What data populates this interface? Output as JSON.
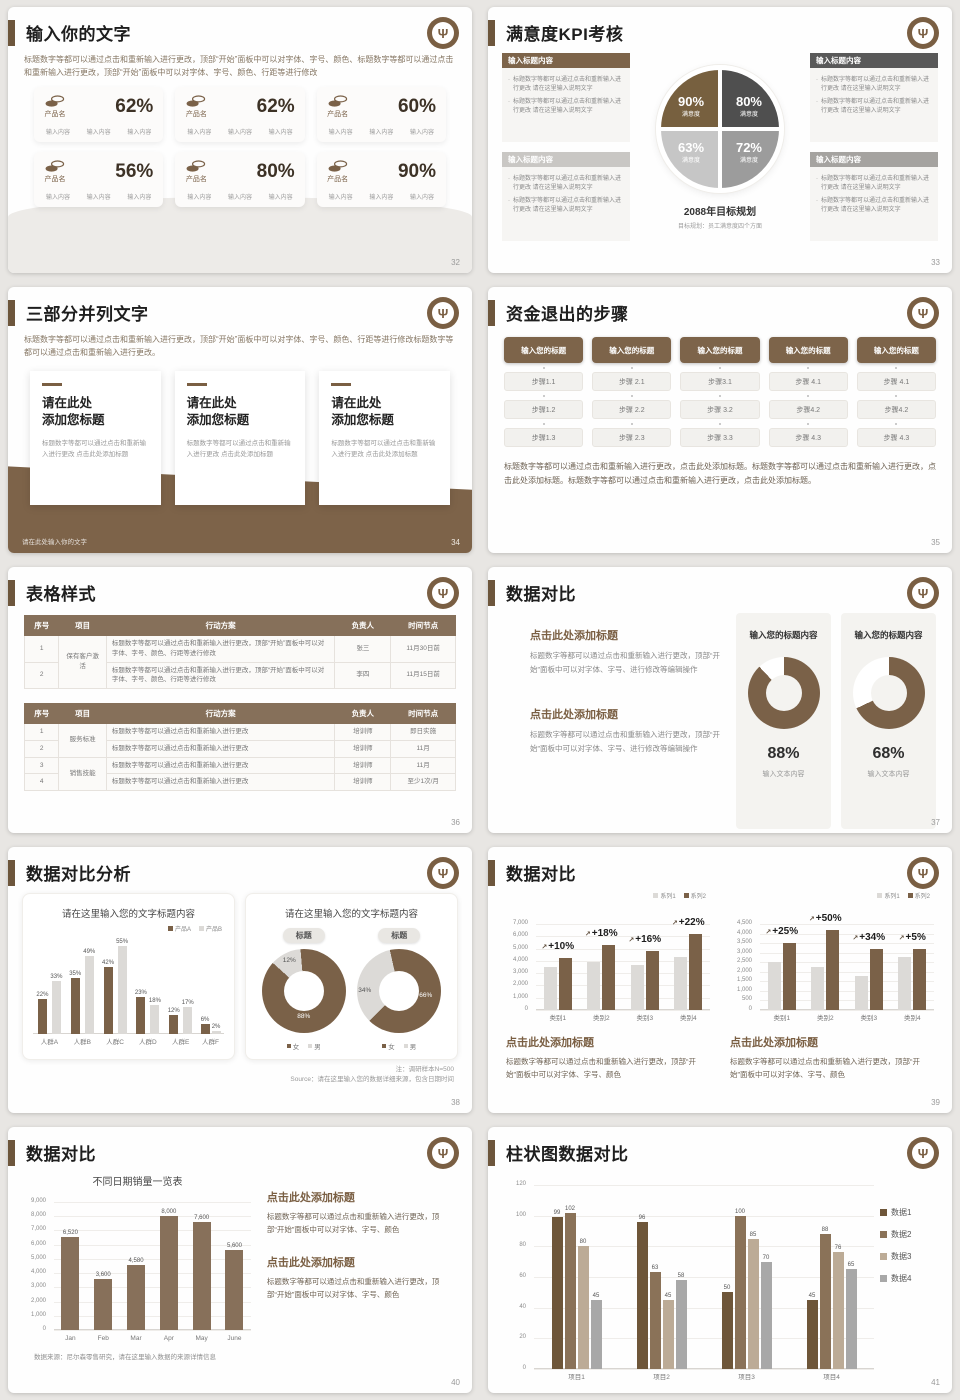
{
  "logo_glyph": "Ψ",
  "slides": {
    "s32": {
      "title": "输入你的文字",
      "page": "32",
      "body": "标题数字等都可以通过点击和重新输入进行更改，顶部“开始”面板中可以对字体、字号、颜色、标题数字等都可以通过点击和重新输入进行更改，顶部“开始”面板中可以对字体、字号、颜色、行距等进行修改",
      "cards": [
        {
          "name": "产品名",
          "value": "62%",
          "items": [
            "输入内容",
            "输入内容",
            "输入内容"
          ]
        },
        {
          "name": "产品名",
          "value": "62%",
          "items": [
            "输入内容",
            "输入内容",
            "输入内容"
          ]
        },
        {
          "name": "产品名",
          "value": "60%",
          "items": [
            "输入内容",
            "输入内容",
            "输入内容"
          ]
        },
        {
          "name": "产品名",
          "value": "56%",
          "items": [
            "输入内容",
            "输入内容",
            "输入内容"
          ]
        },
        {
          "name": "产品名",
          "value": "80%",
          "items": [
            "输入内容",
            "输入内容",
            "输入内容"
          ]
        },
        {
          "name": "产品名",
          "value": "90%",
          "items": [
            "输入内容",
            "输入内容",
            "输入内容"
          ]
        }
      ]
    },
    "s33": {
      "title": "满意度KPI考核",
      "page": "33",
      "boxes": [
        {
          "header": "输入标题内容",
          "hcolor": "#7d644a",
          "bullets": [
            "标题数字等都可以通过点击和重新输入进行更改 请在这里输入说明文字",
            "标题数字等都可以通过点击和重新输入进行更改 请在这里输入说明文字"
          ]
        },
        {
          "header": "输入标题内容",
          "hcolor": "#595959",
          "bullets": [
            "标题数字等都可以通过点击和重新输入进行更改 请在这里输入说明文字",
            "标题数字等都可以通过点击和重新输入进行更改 请在这里输入说明文字"
          ]
        },
        {
          "header": "输入标题内容",
          "hcolor": "#c9c7c4",
          "bullets": [
            "标题数字等都可以通过点击和重新输入进行更改 请在这里输入说明文字",
            "标题数字等都可以通过点击和重新输入进行更改 请在这里输入说明文字"
          ]
        },
        {
          "header": "输入标题内容",
          "hcolor": "#a5a3a0",
          "bullets": [
            "标题数字等都可以通过点击和重新输入进行更改 请在这里输入说明文字",
            "标题数字等都可以通过点击和重新输入进行更改 请在这里输入说明文字"
          ]
        }
      ],
      "caption_title": "2088年目标规划",
      "caption_sub": "目标规划：员工满意度四个方面"
    },
    "s34": {
      "title": "三部分并列文字",
      "page": "34",
      "body": "标题数字等都可以通过点击和重新输入进行更改，顶部“开始”面板中可以对字体、字号、颜色、行距等进行修改标题数字等都可以通过点击和重新输入进行更改。",
      "cards": [
        {
          "heading": "请在此处\n添加您标题",
          "body": "标题数字等都可以通过点击和重新输入进行更改 点击此处添加标题"
        },
        {
          "heading": "请在此处\n添加您标题",
          "body": "标题数字等都可以通过点击和重新输入进行更改 点击此处添加标题"
        },
        {
          "heading": "请在此处\n添加您标题",
          "body": "标题数字等都可以通过点击和重新输入进行更改 点击此处添加标题"
        }
      ],
      "footer": "请在此处输入你的文字"
    },
    "s35": {
      "title": "资金退出的步骤",
      "page": "35",
      "columns": [
        {
          "header": "输入您的标题",
          "steps": [
            "步骤1.1",
            "步骤1.2",
            "步骤1.3"
          ]
        },
        {
          "header": "输入您的标题",
          "steps": [
            "步骤 2.1",
            "步骤 2.2",
            "步骤 2.3"
          ]
        },
        {
          "header": "输入您的标题",
          "steps": [
            "步骤3.1",
            "步骤 3.2",
            "步骤 3.3"
          ]
        },
        {
          "header": "输入您的标题",
          "steps": [
            "步骤 4.1",
            "步骤4.2",
            "步骤 4.3"
          ]
        },
        {
          "header": "输入您的标题",
          "steps": [
            "步骤 4.1",
            "步骤4.2",
            "步骤 4.3"
          ]
        }
      ],
      "body": "标题数字等都可以通过点击和重新输入进行更改，点击此处添加标题。标题数字等都可以通过点击和重新输入进行更改，点击此处添加标题。标题数字等都可以通过点击和重新输入进行更改，点击此处添加标题。"
    },
    "s36": {
      "title": "表格样式",
      "page": "36",
      "headers": [
        "序号",
        "项目",
        "行动方案",
        "负责人",
        "时间节点"
      ],
      "table1_rows": [
        {
          "no": "1",
          "item": "保有客户激活",
          "plan": "标题数字等都可以通过点击和重新输入进行更改，顶部“开始”面板中可以对字体、字号、颜色、行距等进行修改",
          "owner": "张三",
          "time": "11月30日前"
        },
        {
          "no": "2",
          "plan": "标题数字等都可以通过点击和重新输入进行更改，顶部“开始”面板中可以对字体、字号、颜色、行距等进行修改",
          "owner": "李四",
          "time": "11月15日前"
        }
      ],
      "table2_rows": [
        {
          "no": "1",
          "item": "服务标准",
          "plan": "标题数字等都可以通过点击和重新输入进行更改",
          "owner": "培训师",
          "time": "即日实施"
        },
        {
          "no": "2",
          "plan": "标题数字等都可以通过点击和重新输入进行更改",
          "owner": "培训师",
          "time": "11月"
        },
        {
          "no": "3",
          "item": "销售技能",
          "plan": "标题数字等都可以通过点击和重新输入进行更改",
          "owner": "培训师",
          "time": "11月"
        },
        {
          "no": "4",
          "plan": "标题数字等都可以通过点击和重新输入进行更改",
          "owner": "培训师",
          "time": "至少1次/月"
        }
      ]
    },
    "s37": {
      "title": "数据对比",
      "page": "37",
      "sections": [
        {
          "heading": "点击此处添加标题",
          "body": "标题数字等都可以通过点击和重新输入进行更改，顶部“开始”面板中可以对字体、字号、进行修改等编辑操作"
        },
        {
          "heading": "点击此处添加标题",
          "body": "标题数字等都可以通过点击和重新输入进行更改，顶部“开始”面板中可以对字体、字号、进行修改等编辑操作"
        }
      ],
      "cards": [
        {
          "header": "输入您的标题内容",
          "pct_label": "88%",
          "caption": "输入文本内容"
        },
        {
          "header": "输入您的标题内容",
          "pct_label": "68%",
          "caption": "输入文本内容"
        }
      ]
    },
    "s38": {
      "title": "数据对比分析",
      "page": "38",
      "left_title": "请在这里输入您的文字标题内容",
      "right_title": "请在这里输入您的文字标题内容",
      "pill": "标题",
      "donut_legend": [
        {
          "label": "女",
          "color": "#7a6148"
        },
        {
          "label": "男",
          "color": "#dcdad7"
        }
      ],
      "note1": "注：调研样本N=500",
      "note2": "Source：请在这里输入您的数据详细来源，包含日期时间"
    },
    "s39": {
      "title": "数据对比",
      "page": "39",
      "blocks": [
        {
          "heading": "点击此处添加标题",
          "body": "标题数字等都可以通过点击和重新输入进行更改，顶部“开始”面板中可以对字体、字号、颜色"
        },
        {
          "heading": "点击此处添加标题",
          "body": "标题数字等都可以通过点击和重新输入进行更改，顶部“开始”面板中可以对字体、字号、颜色"
        }
      ]
    },
    "s40": {
      "title": "数据对比",
      "page": "40",
      "chart_title": "不同日期销量一览表",
      "source": "数据来源：尼尔森零售研究，请在这里输入数据的来源详情信息",
      "blocks": [
        {
          "heading": "点击此处添加标题",
          "body": "标题数字等都可以通过点击和重新输入进行更改，顶部“开始”面板中可以对字体、字号、颜色"
        },
        {
          "heading": "点击此处添加标题",
          "body": "标题数字等都可以通过点击和重新输入进行更改，顶部“开始”面板中可以对字体、字号、颜色"
        }
      ]
    },
    "s41": {
      "title": "柱状图数据对比",
      "page": "41"
    }
  },
  "chart_data": [
    {
      "id": "kpi-satisfaction-pie",
      "type": "quadrant-pie",
      "title": "2088年目标规划",
      "values": [
        {
          "pos": "tl",
          "pct_label": "90%",
          "pct": 90,
          "label": "满意度",
          "color": "#77603f"
        },
        {
          "pos": "tr",
          "pct_label": "80%",
          "pct": 80,
          "label": "满意度",
          "color": "#4f4f4f"
        },
        {
          "pos": "br",
          "pct_label": "72%",
          "pct": 72,
          "label": "满意度",
          "color": "#9c9c9c"
        },
        {
          "pos": "bl",
          "pct_label": "63%",
          "pct": 63,
          "label": "满意度",
          "color": "#c6c6c6"
        }
      ]
    },
    {
      "id": "donut-88",
      "type": "donut",
      "value": 88,
      "pct_label": "88%",
      "color": "#7a6148",
      "track": "#ffffff",
      "from": 0
    },
    {
      "id": "donut-68",
      "type": "donut",
      "value": 68,
      "pct_label": "68%",
      "color": "#7a6148",
      "track": "#ffffff",
      "from": 0
    },
    {
      "id": "crowd-product-compare",
      "type": "bar",
      "bar_labels": true,
      "label_suffix": "%",
      "bw": 9,
      "ymax": 60,
      "categories": [
        "人群A",
        "人群B",
        "人群C",
        "人群D",
        "人群E",
        "人群F"
      ],
      "series": [
        {
          "name": "产品A",
          "color": "#7a6148",
          "values": [
            22,
            35,
            42,
            23,
            12,
            6
          ]
        },
        {
          "name": "产品B",
          "color": "#dcdad7",
          "values": [
            33,
            49,
            55,
            18,
            17,
            2
          ]
        }
      ]
    },
    {
      "id": "gender-donut-left",
      "type": "donut",
      "value": 12,
      "color": "#dcdad7",
      "track": "#7a6148",
      "from": 312,
      "labels": [
        "12%",
        "88%"
      ]
    },
    {
      "id": "gender-donut-right",
      "type": "donut",
      "value": 34,
      "color": "#dcdad7",
      "track": "#7a6148",
      "from": 225,
      "labels": [
        "34%",
        "66%"
      ]
    },
    {
      "id": "category-compare-left",
      "type": "bar",
      "bw": 13,
      "ymax": 7000,
      "ystep": 1000,
      "categories": [
        "类别1",
        "类别2",
        "类别3",
        "类别4"
      ],
      "annotations": [
        "+10%",
        "+18%",
        "+16%",
        "+22%"
      ],
      "series": [
        {
          "name": "系列1",
          "color": "#dcdad7",
          "values": [
            3500,
            3900,
            3700,
            4300
          ]
        },
        {
          "name": "系列2",
          "color": "#7a6148",
          "values": [
            4200,
            5300,
            4800,
            6200
          ]
        }
      ]
    },
    {
      "id": "category-compare-right",
      "type": "bar",
      "bw": 13,
      "ymax": 4500,
      "ystep": 500,
      "categories": [
        "类别1",
        "类别2",
        "类别3",
        "类别4"
      ],
      "annotations": [
        "+25%",
        "+50%",
        "+34%",
        "+5%"
      ],
      "series": [
        {
          "name": "系列1",
          "color": "#dcdad7",
          "values": [
            2500,
            2250,
            1800,
            2800
          ]
        },
        {
          "name": "系列2",
          "color": "#7a6148",
          "values": [
            3500,
            4200,
            3200,
            3200
          ]
        }
      ]
    },
    {
      "id": "monthly-sales",
      "type": "bar",
      "bw": 18,
      "ymax": 9000,
      "ystep": 1000,
      "title": "不同日期销量一览表",
      "categories": [
        "Jan",
        "Feb",
        "Mar",
        "Apr",
        "May",
        "June"
      ],
      "series": [
        {
          "name": "销量",
          "color": "#87705a",
          "values": [
            6520,
            3600,
            4580,
            8000,
            7600,
            5600
          ],
          "labels": [
            "6,520",
            "3,600",
            "4,580",
            "8,000",
            "7,600",
            "5,600"
          ]
        }
      ]
    },
    {
      "id": "project-data-compare",
      "type": "bar",
      "bw": 11,
      "ymax": 120,
      "ystep": 20,
      "bar_labels": true,
      "categories": [
        "项目1",
        "项目2",
        "项目3",
        "项目4"
      ],
      "series": [
        {
          "name": "数据1",
          "color": "#6e5639",
          "values": [
            99,
            96,
            50,
            45
          ]
        },
        {
          "name": "数据2",
          "color": "#8a7258",
          "values": [
            102,
            63,
            100,
            88
          ]
        },
        {
          "name": "数据3",
          "color": "#bcab96",
          "values": [
            80,
            45,
            85,
            76
          ]
        },
        {
          "name": "数据4",
          "color": "#a8a8a8",
          "values": [
            45,
            58,
            70,
            65
          ]
        }
      ]
    }
  ]
}
